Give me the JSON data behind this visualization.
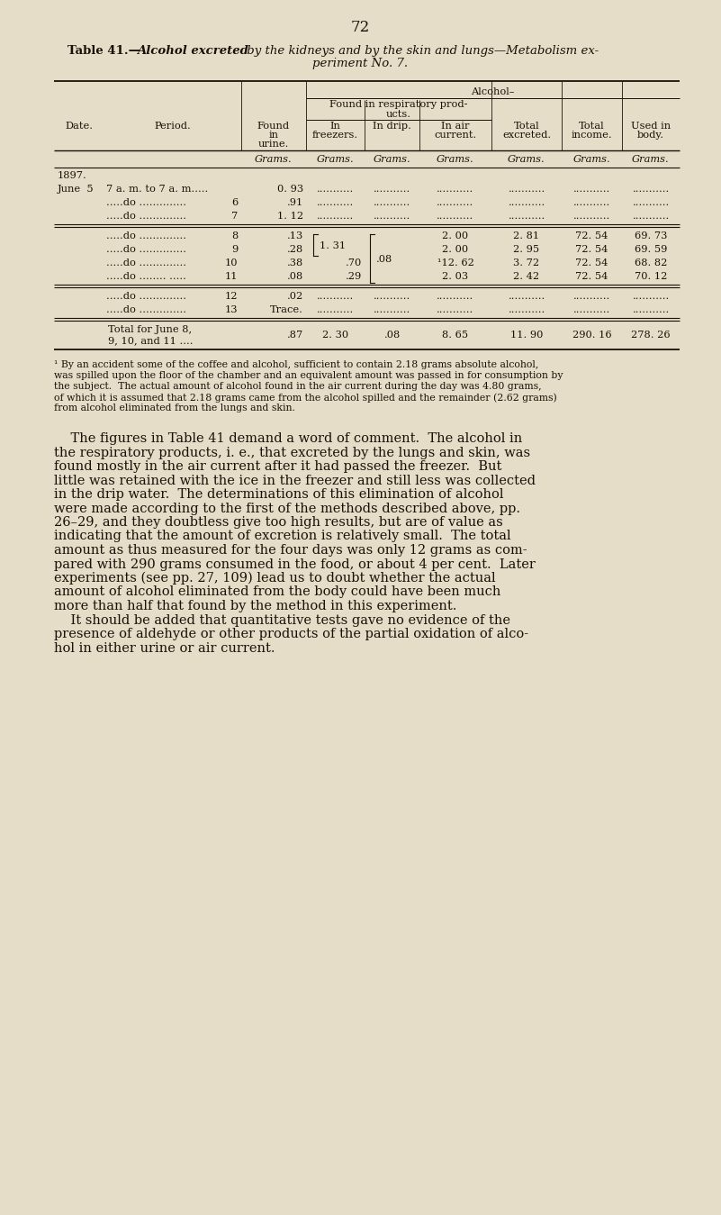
{
  "bg_color": "#e6ddc8",
  "page_number": "72",
  "text_color": "#1a1008",
  "font_size_body": 10.5,
  "font_size_table": 8.2,
  "font_size_footnote": 7.8,
  "font_size_title": 9.5,
  "table_title_bold": "Table 41.—",
  "table_title_italic1": "Alcohol excreted",
  "table_title_rest1": " by the kidneys and by the skin and lungs—Metabolism ex-",
  "table_title_line2": "periment No. 7.",
  "footnote": "¹ By an accident some of the coffee and alcohol, sufficient to contain 2.18 grams absolute alcohol, was spilled upon the floor of the chamber and an equivalent amount was passed in for consumption by the subject.  The actual amount of alcohol found in the air current during the day was 4.80 grams, of which it is assumed that 2.18 grams came from the alcohol spilled and the remainder (2.62 grams) from alcohol eliminated from the lungs and skin.",
  "body_text": [
    "    The figures in Table 41 demand a word of comment.  The alcohol in",
    "the respiratory products, i. e., that excreted by the lungs and skin, was",
    "found mostly in the air current after it had passed the freezer.  But",
    "little was retained with the ice in the freezer and still less was collected",
    "in the drip water.  The determinations of this elimination of alcohol",
    "were made according to the first of the methods described above, pp.",
    "26–29, and they doubtless give too high results, but are of value as",
    "indicating that the amount of excretion is relatively small.  The total",
    "amount as thus measured for the four days was only 12 grams as com-",
    "pared with 290 grams consumed in the food, or about 4 per cent.  Later",
    "experiments (see pp. 27, 109) lead us to doubt whether the actual",
    "amount of alcohol eliminated from the body could have been much",
    "more than half that found by the method in this experiment.",
    "    It should be added that quantitative tests gave no evidence of the",
    "presence of aldehyde or other products of the partial oxidation of alco-",
    "hol in either urine or air current."
  ]
}
